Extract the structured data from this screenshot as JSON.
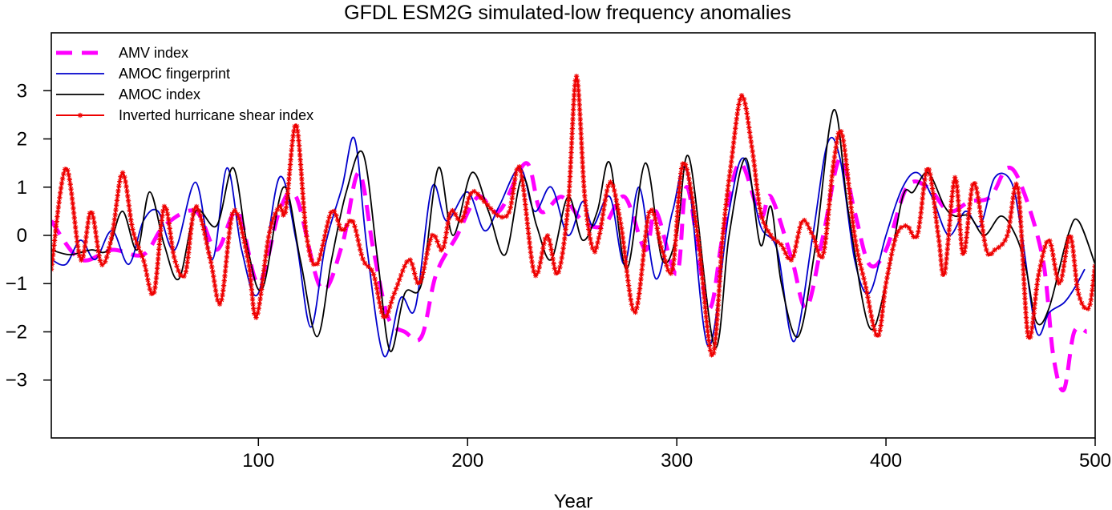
{
  "chart_data": {
    "type": "line",
    "title": "GFDL ESM2G simulated-low frequency anomalies",
    "xlabel": "Year",
    "ylabel": "",
    "xlim": [
      1,
      500
    ],
    "ylim": [
      -4.2,
      4.2
    ],
    "xticks": [
      100,
      200,
      300,
      400,
      500
    ],
    "yticks": [
      3,
      2,
      1,
      0,
      -1,
      -2,
      -3
    ],
    "x_tick_labels": [
      "100",
      "200",
      "300",
      "400",
      "500"
    ],
    "y_tick_labels": [
      "3",
      "2",
      "1",
      "0",
      "−1",
      "−2",
      "−3"
    ],
    "grid": false,
    "legend_position": "top-left",
    "series": [
      {
        "name": "AMV index",
        "color": "#ff00ff",
        "style": "dashed",
        "points": [
          [
            1,
            0.3
          ],
          [
            15,
            -0.5
          ],
          [
            30,
            -0.3
          ],
          [
            45,
            -0.4
          ],
          [
            55,
            0.2
          ],
          [
            70,
            0.5
          ],
          [
            80,
            -0.3
          ],
          [
            90,
            0.5
          ],
          [
            100,
            -1.0
          ],
          [
            110,
            0.5
          ],
          [
            118,
            0.8
          ],
          [
            130,
            -1.1
          ],
          [
            140,
            -0.2
          ],
          [
            148,
            1.3
          ],
          [
            155,
            -0.3
          ],
          [
            162,
            -1.7
          ],
          [
            170,
            -2.0
          ],
          [
            178,
            -2.1
          ],
          [
            185,
            -0.8
          ],
          [
            195,
            0.0
          ],
          [
            205,
            0.8
          ],
          [
            215,
            0.5
          ],
          [
            228,
            1.5
          ],
          [
            235,
            0.5
          ],
          [
            245,
            0.8
          ],
          [
            255,
            0.3
          ],
          [
            265,
            0.2
          ],
          [
            275,
            0.8
          ],
          [
            285,
            -0.3
          ],
          [
            290,
            0.5
          ],
          [
            300,
            -0.8
          ],
          [
            305,
            1.0
          ],
          [
            315,
            -1.5
          ],
          [
            322,
            0.0
          ],
          [
            330,
            1.5
          ],
          [
            340,
            0.4
          ],
          [
            345,
            0.8
          ],
          [
            355,
            -0.5
          ],
          [
            362,
            -1.5
          ],
          [
            370,
            0.0
          ],
          [
            378,
            1.6
          ],
          [
            385,
            0.5
          ],
          [
            392,
            -0.6
          ],
          [
            400,
            -0.3
          ],
          [
            410,
            1.0
          ],
          [
            420,
            1.0
          ],
          [
            430,
            0.5
          ],
          [
            440,
            0.7
          ],
          [
            450,
            0.8
          ],
          [
            458,
            1.4
          ],
          [
            465,
            1.0
          ],
          [
            475,
            -0.5
          ],
          [
            480,
            -2.5
          ],
          [
            485,
            -3.2
          ],
          [
            490,
            -2.0
          ],
          [
            496,
            -2.0
          ]
        ]
      },
      {
        "name": "AMOC fingerprint",
        "color": "#0000cc",
        "style": "solid",
        "points": [
          [
            1,
            -0.5
          ],
          [
            8,
            -0.6
          ],
          [
            15,
            -0.1
          ],
          [
            22,
            -0.5
          ],
          [
            30,
            0.1
          ],
          [
            38,
            -0.6
          ],
          [
            45,
            0.3
          ],
          [
            52,
            0.5
          ],
          [
            60,
            -0.3
          ],
          [
            70,
            1.1
          ],
          [
            78,
            -0.5
          ],
          [
            85,
            1.4
          ],
          [
            92,
            -0.3
          ],
          [
            100,
            -1.2
          ],
          [
            110,
            1.2
          ],
          [
            118,
            -0.1
          ],
          [
            125,
            -1.9
          ],
          [
            132,
            -0.2
          ],
          [
            140,
            1.0
          ],
          [
            146,
            2.0
          ],
          [
            152,
            -0.3
          ],
          [
            160,
            -2.5
          ],
          [
            168,
            -1.3
          ],
          [
            175,
            -1.5
          ],
          [
            183,
            1.0
          ],
          [
            190,
            0.3
          ],
          [
            200,
            0.9
          ],
          [
            208,
            0.1
          ],
          [
            215,
            0.6
          ],
          [
            225,
            1.4
          ],
          [
            232,
            0.5
          ],
          [
            240,
            1.0
          ],
          [
            248,
            0.0
          ],
          [
            255,
            0.7
          ],
          [
            260,
            0.2
          ],
          [
            268,
            0.8
          ],
          [
            275,
            -0.6
          ],
          [
            282,
            1.0
          ],
          [
            290,
            -0.9
          ],
          [
            298,
            0.5
          ],
          [
            305,
            1.3
          ],
          [
            315,
            -2.3
          ],
          [
            325,
            0.5
          ],
          [
            332,
            1.6
          ],
          [
            340,
            0.2
          ],
          [
            348,
            -0.3
          ],
          [
            356,
            -2.2
          ],
          [
            365,
            0.0
          ],
          [
            372,
            1.9
          ],
          [
            378,
            1.6
          ],
          [
            385,
            -0.5
          ],
          [
            392,
            -1.2
          ],
          [
            400,
            0.0
          ],
          [
            408,
            1.0
          ],
          [
            415,
            1.3
          ],
          [
            422,
            0.8
          ],
          [
            430,
            0.0
          ],
          [
            438,
            0.5
          ],
          [
            445,
            0.2
          ],
          [
            452,
            1.2
          ],
          [
            460,
            1.1
          ],
          [
            465,
            0.0
          ],
          [
            472,
            -2.0
          ],
          [
            478,
            -1.6
          ],
          [
            485,
            -1.4
          ],
          [
            490,
            -1.1
          ],
          [
            495,
            -0.7
          ]
        ]
      },
      {
        "name": "AMOC index",
        "color": "#000000",
        "style": "solid",
        "points": [
          [
            1,
            -0.3
          ],
          [
            10,
            -0.4
          ],
          [
            20,
            -0.3
          ],
          [
            28,
            -0.3
          ],
          [
            35,
            0.5
          ],
          [
            42,
            -0.3
          ],
          [
            48,
            0.9
          ],
          [
            55,
            -0.2
          ],
          [
            62,
            -0.9
          ],
          [
            70,
            0.5
          ],
          [
            80,
            0.2
          ],
          [
            88,
            1.4
          ],
          [
            95,
            -0.3
          ],
          [
            102,
            -1.1
          ],
          [
            112,
            1.0
          ],
          [
            120,
            -0.5
          ],
          [
            128,
            -2.1
          ],
          [
            135,
            -0.5
          ],
          [
            142,
            0.9
          ],
          [
            150,
            1.7
          ],
          [
            157,
            -0.5
          ],
          [
            163,
            -2.4
          ],
          [
            170,
            -1.2
          ],
          [
            178,
            -1.0
          ],
          [
            186,
            1.4
          ],
          [
            193,
            0.0
          ],
          [
            202,
            1.3
          ],
          [
            210,
            0.5
          ],
          [
            218,
            -0.4
          ],
          [
            226,
            1.2
          ],
          [
            233,
            0.2
          ],
          [
            240,
            -0.5
          ],
          [
            248,
            0.8
          ],
          [
            255,
            -0.1
          ],
          [
            262,
            0.5
          ],
          [
            268,
            1.5
          ],
          [
            276,
            -0.7
          ],
          [
            285,
            1.5
          ],
          [
            293,
            -0.5
          ],
          [
            300,
            0.0
          ],
          [
            306,
            1.6
          ],
          [
            318,
            -2.3
          ],
          [
            325,
            0.0
          ],
          [
            333,
            1.6
          ],
          [
            340,
            -0.2
          ],
          [
            345,
            0.6
          ],
          [
            350,
            -1.0
          ],
          [
            358,
            -2.1
          ],
          [
            366,
            -0.3
          ],
          [
            375,
            2.6
          ],
          [
            382,
            0.5
          ],
          [
            392,
            -1.9
          ],
          [
            400,
            -1.0
          ],
          [
            408,
            0.8
          ],
          [
            413,
            0.9
          ],
          [
            420,
            1.3
          ],
          [
            428,
            0.6
          ],
          [
            433,
            0.4
          ],
          [
            440,
            0.4
          ],
          [
            447,
            0.0
          ],
          [
            455,
            0.4
          ],
          [
            462,
            0.0
          ],
          [
            467,
            -0.7
          ],
          [
            472,
            -1.8
          ],
          [
            478,
            -1.5
          ],
          [
            487,
            0.0
          ],
          [
            492,
            0.3
          ],
          [
            500,
            -0.6
          ]
        ]
      },
      {
        "name": "Inverted hurricane shear index",
        "color": "#ee0000",
        "style": "solid-star",
        "points": [
          [
            1,
            -0.7
          ],
          [
            8,
            1.4
          ],
          [
            15,
            -0.5
          ],
          [
            20,
            0.5
          ],
          [
            25,
            -0.6
          ],
          [
            30,
            0.0
          ],
          [
            35,
            1.3
          ],
          [
            40,
            0.1
          ],
          [
            45,
            -0.5
          ],
          [
            50,
            -1.2
          ],
          [
            55,
            0.6
          ],
          [
            60,
            -0.5
          ],
          [
            65,
            -0.8
          ],
          [
            70,
            0.6
          ],
          [
            77,
            -0.5
          ],
          [
            82,
            -1.4
          ],
          [
            88,
            0.5
          ],
          [
            95,
            -0.5
          ],
          [
            99,
            -1.7
          ],
          [
            105,
            0.0
          ],
          [
            110,
            0.6
          ],
          [
            113,
            0.5
          ],
          [
            118,
            2.3
          ],
          [
            123,
            0.0
          ],
          [
            128,
            -0.6
          ],
          [
            135,
            0.5
          ],
          [
            140,
            0.1
          ],
          [
            145,
            0.3
          ],
          [
            150,
            -0.5
          ],
          [
            155,
            -0.8
          ],
          [
            160,
            -1.7
          ],
          [
            165,
            -1.2
          ],
          [
            172,
            -0.5
          ],
          [
            177,
            -1.0
          ],
          [
            183,
            0.0
          ],
          [
            188,
            -0.3
          ],
          [
            192,
            0.5
          ],
          [
            197,
            0.3
          ],
          [
            202,
            0.9
          ],
          [
            208,
            0.7
          ],
          [
            215,
            0.4
          ],
          [
            220,
            0.5
          ],
          [
            225,
            1.4
          ],
          [
            232,
            -0.8
          ],
          [
            238,
            0.0
          ],
          [
            243,
            -0.8
          ],
          [
            248,
            0.6
          ],
          [
            252,
            3.3
          ],
          [
            256,
            0.8
          ],
          [
            260,
            -0.3
          ],
          [
            263,
            0.0
          ],
          [
            268,
            1.1
          ],
          [
            273,
            0.3
          ],
          [
            280,
            -1.6
          ],
          [
            287,
            0.5
          ],
          [
            293,
            -0.3
          ],
          [
            298,
            -0.7
          ],
          [
            303,
            1.5
          ],
          [
            310,
            0.0
          ],
          [
            317,
            -2.5
          ],
          [
            322,
            0.0
          ],
          [
            326,
            1.5
          ],
          [
            331,
            2.9
          ],
          [
            336,
            1.8
          ],
          [
            340,
            0.5
          ],
          [
            345,
            0.0
          ],
          [
            350,
            -0.2
          ],
          [
            355,
            -0.5
          ],
          [
            360,
            0.3
          ],
          [
            365,
            0.0
          ],
          [
            370,
            -0.4
          ],
          [
            375,
            1.5
          ],
          [
            379,
            2.1
          ],
          [
            385,
            0.0
          ],
          [
            390,
            -1.0
          ],
          [
            396,
            -2.1
          ],
          [
            400,
            -1.0
          ],
          [
            405,
            0.0
          ],
          [
            410,
            0.2
          ],
          [
            415,
            0.0
          ],
          [
            420,
            1.4
          ],
          [
            425,
            0.0
          ],
          [
            428,
            -0.8
          ],
          [
            433,
            1.2
          ],
          [
            437,
            -0.4
          ],
          [
            442,
            1.1
          ],
          [
            448,
            -0.3
          ],
          [
            452,
            -0.3
          ],
          [
            458,
            0.0
          ],
          [
            463,
            1.0
          ],
          [
            468,
            -2.1
          ],
          [
            473,
            -0.8
          ],
          [
            478,
            -0.1
          ],
          [
            483,
            -1.0
          ],
          [
            488,
            0.0
          ],
          [
            492,
            -1.2
          ],
          [
            497,
            -1.5
          ],
          [
            500,
            -0.6
          ]
        ]
      }
    ]
  }
}
